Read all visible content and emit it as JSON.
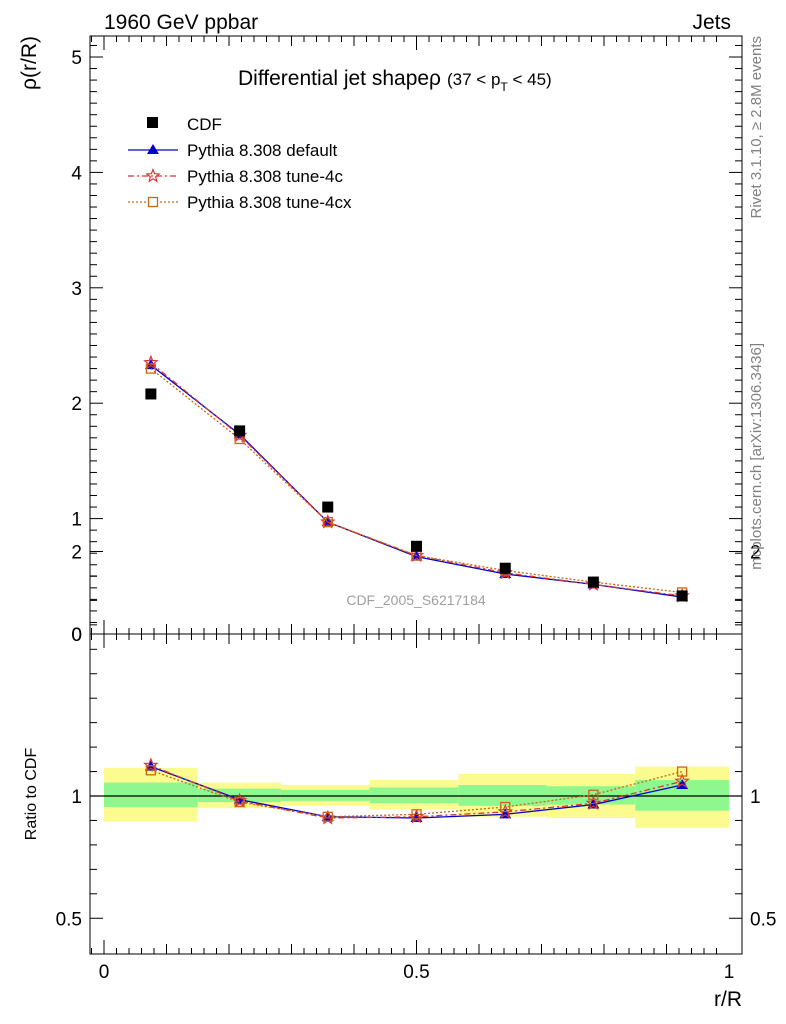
{
  "header": {
    "left": "1960 GeV ppbar",
    "right": "Jets"
  },
  "title": {
    "main": "Differential jet shapeρ",
    "cut_prefix": "(37 < p",
    "cut_sub": "T",
    "cut_suffix": " < 45)"
  },
  "side_labels": {
    "rivet": "Rivet 3.1.10, ≥ 2.8M events",
    "mcplots": "mcplots.cern.ch [arXiv:1306.3436]"
  },
  "watermark": "CDF_2005_S6217184",
  "colors": {
    "cdf": "#000000",
    "default": "#0000cc",
    "tune4c": "#dd3333",
    "tune4cx": "#cc6611",
    "band_inner": "#8ef78e",
    "band_outer": "#fbfb8f"
  },
  "chart_data": [
    {
      "type": "line",
      "ylabel": "ρ(r/R)",
      "xlim": [
        0,
        1
      ],
      "ylim": [
        0,
        5.2
      ],
      "yticks": [
        0,
        1,
        2,
        3,
        4,
        5
      ],
      "x": [
        0.075,
        0.217,
        0.358,
        0.5,
        0.642,
        0.783,
        0.925
      ],
      "legend": [
        "CDF",
        "Pythia 8.308 default",
        "Pythia 8.308 tune-4c",
        "Pythia 8.308 tune-4cx"
      ],
      "legend_position": "top-left",
      "series": [
        {
          "name": "CDF",
          "marker": "square",
          "values": [
            2.08,
            1.76,
            1.1,
            0.76,
            0.57,
            0.45,
            0.33
          ]
        },
        {
          "name": "Pythia 8.308 default",
          "marker": "triangle",
          "values": [
            2.33,
            1.73,
            0.97,
            0.67,
            0.52,
            0.43,
            0.32
          ]
        },
        {
          "name": "Pythia 8.308 tune-4c",
          "marker": "star",
          "values": [
            2.35,
            1.72,
            0.97,
            0.68,
            0.53,
            0.43,
            0.33
          ]
        },
        {
          "name": "Pythia 8.308 tune-4cx",
          "marker": "open-square",
          "values": [
            2.3,
            1.69,
            0.97,
            0.68,
            0.55,
            0.45,
            0.36
          ]
        }
      ]
    },
    {
      "type": "line",
      "ylabel": "Ratio to CDF",
      "xlabel": "r/R",
      "xlim": [
        0,
        1
      ],
      "ylim": [
        0.35,
        2.3
      ],
      "yticks": [
        0.5,
        1,
        2
      ],
      "xticks": [
        0,
        0.5,
        1
      ],
      "xtick_labels": [
        "0",
        "0.5",
        "1"
      ],
      "bins": [
        [
          0,
          0.15
        ],
        [
          0.15,
          0.283
        ],
        [
          0.283,
          0.425
        ],
        [
          0.425,
          0.567
        ],
        [
          0.567,
          0.708
        ],
        [
          0.708,
          0.85
        ],
        [
          0.85,
          1
        ]
      ],
      "band_inner": [
        [
          0.955,
          1.055
        ],
        [
          0.975,
          1.03
        ],
        [
          0.98,
          1.025
        ],
        [
          0.97,
          1.035
        ],
        [
          0.96,
          1.045
        ],
        [
          0.965,
          1.04
        ],
        [
          0.94,
          1.065
        ]
      ],
      "band_outer": [
        [
          0.895,
          1.115
        ],
        [
          0.95,
          1.055
        ],
        [
          0.96,
          1.045
        ],
        [
          0.945,
          1.065
        ],
        [
          0.915,
          1.09
        ],
        [
          0.91,
          1.09
        ],
        [
          0.87,
          1.12
        ]
      ],
      "x": [
        0.075,
        0.217,
        0.358,
        0.5,
        0.642,
        0.783,
        0.925
      ],
      "series": [
        {
          "name": "Pythia 8.308 default",
          "values": [
            1.12,
            0.985,
            0.915,
            0.91,
            0.925,
            0.965,
            1.045
          ]
        },
        {
          "name": "Pythia 8.308 tune-4c",
          "values": [
            1.125,
            0.98,
            0.91,
            0.915,
            0.935,
            0.97,
            1.06
          ]
        },
        {
          "name": "Pythia 8.308 tune-4cx",
          "values": [
            1.105,
            0.975,
            0.915,
            0.925,
            0.955,
            1.005,
            1.1
          ]
        }
      ]
    }
  ]
}
